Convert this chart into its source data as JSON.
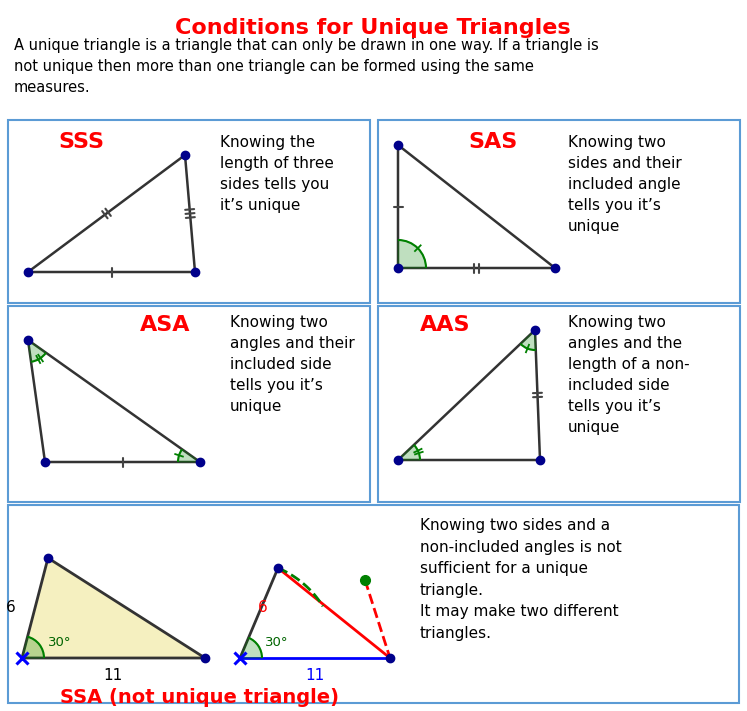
{
  "title": "Conditions for Unique Triangles",
  "intro_text": "A unique triangle is a triangle that can only be drawn in one way. If a triangle is\nnot unique then more than one triangle can be formed using the same\nmeasures.",
  "bg_color": "#ffffff",
  "border_color": "#5b9bd5",
  "title_color": "#ff0000",
  "label_color": "#ff0000",
  "dot_color": "#00008b",
  "panels": [
    {
      "label": "SSS",
      "desc": "Knowing the\nlength of three\nsides tells you\nit’s unique"
    },
    {
      "label": "SAS",
      "desc": "Knowing two\nsides and their\nincluded angle\ntells you it’s\nunique"
    },
    {
      "label": "ASA",
      "desc": "Knowing two\nangles and their\nincluded side\ntells you it’s\nunique"
    },
    {
      "label": "AAS",
      "desc": "Knowing two\nangles and the\nlength of a non-\nincluded side\ntells you it’s\nunique"
    }
  ]
}
